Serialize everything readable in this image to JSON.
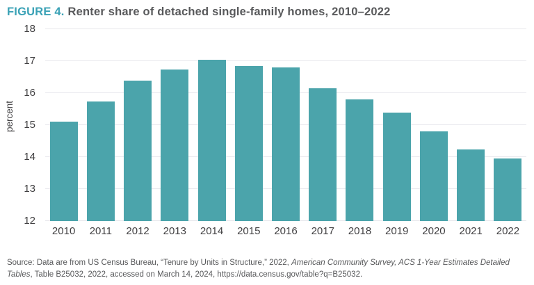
{
  "figure": {
    "label": "FIGURE 4.",
    "title": "Renter share of detached single-family homes, 2010–2022"
  },
  "chart_data": {
    "type": "bar",
    "categories": [
      "2010",
      "2011",
      "2012",
      "2013",
      "2014",
      "2015",
      "2016",
      "2017",
      "2018",
      "2019",
      "2020",
      "2021",
      "2022"
    ],
    "values": [
      15.1,
      15.75,
      16.4,
      16.75,
      17.05,
      16.85,
      16.8,
      16.15,
      15.8,
      15.4,
      14.8,
      14.25,
      13.95
    ],
    "title": "Renter share of detached single-family homes, 2010–2022",
    "xlabel": "",
    "ylabel": "percent",
    "ylim": [
      12,
      18
    ],
    "yticks": [
      12,
      13,
      14,
      15,
      16,
      17,
      18
    ],
    "grid": true,
    "legend": "none",
    "bar_color": "#4ba4ab"
  },
  "source": {
    "prefix": "Source: Data are from US Census Bureau, “Tenure by Units in Structure,” 2022, ",
    "italic": "American Community Survey, ACS 1-Year Estimates Detailed Tables",
    "suffix": ", Table B25032, 2022, accessed on March 14, 2024, https://data.census.gov/table?q=B25032."
  },
  "colors": {
    "accent_teal": "#3ba2b6",
    "bar_teal": "#4ba4ab",
    "text_dark": "#414042",
    "text_gray": "#58595b",
    "gridline": "#e7e7ec"
  }
}
